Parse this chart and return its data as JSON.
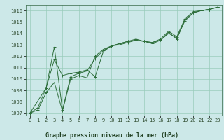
{
  "xlabel": "Graphe pression niveau de la mer (hPa)",
  "bg_color": "#cce8e8",
  "grid_color": "#99ccbb",
  "line_color": "#2d6e3a",
  "marker_color": "#2d6e3a",
  "ylim": [
    1006.8,
    1016.5
  ],
  "xlim": [
    -0.5,
    23.5
  ],
  "yticks": [
    1007,
    1008,
    1009,
    1010,
    1011,
    1012,
    1013,
    1014,
    1015,
    1016
  ],
  "xticks": [
    0,
    1,
    2,
    3,
    4,
    5,
    6,
    7,
    8,
    9,
    10,
    11,
    12,
    13,
    14,
    15,
    16,
    17,
    18,
    19,
    20,
    21,
    22,
    23
  ],
  "series1_x": [
    0,
    1,
    2,
    3,
    4,
    5,
    6,
    7,
    8,
    9,
    10,
    11,
    12,
    13,
    14,
    15,
    16,
    17,
    18,
    19,
    20,
    21,
    22,
    23
  ],
  "series1_y": [
    1007.0,
    1007.5,
    1009.2,
    1012.8,
    1007.3,
    1010.2,
    1010.5,
    1010.7,
    1011.8,
    1012.5,
    1012.9,
    1013.1,
    1013.3,
    1013.5,
    1013.3,
    1013.2,
    1013.5,
    1014.2,
    1013.7,
    1015.3,
    1015.9,
    1016.0,
    1016.1,
    1016.3
  ],
  "series2_x": [
    0,
    2,
    3,
    4,
    5,
    6,
    7,
    8,
    9,
    10,
    11,
    12,
    13,
    14,
    15,
    16,
    17,
    18,
    19,
    20,
    21,
    22,
    23
  ],
  "series2_y": [
    1007.0,
    1009.2,
    1011.7,
    1010.3,
    1010.5,
    1010.6,
    1010.8,
    1010.2,
    1012.4,
    1012.9,
    1013.0,
    1013.2,
    1013.4,
    1013.3,
    1013.2,
    1013.4,
    1014.0,
    1013.6,
    1015.1,
    1015.8,
    1016.0,
    1016.1,
    1016.3
  ],
  "series3_x": [
    0,
    1,
    2,
    3,
    4,
    5,
    6,
    7,
    8,
    9,
    10,
    11,
    12,
    13,
    14,
    15,
    16,
    17,
    18,
    19,
    20,
    21,
    22,
    23
  ],
  "series3_y": [
    1007.0,
    1007.3,
    1008.8,
    1009.7,
    1007.2,
    1010.0,
    1010.3,
    1010.1,
    1012.0,
    1012.6,
    1012.9,
    1013.1,
    1013.3,
    1013.4,
    1013.3,
    1013.1,
    1013.4,
    1014.1,
    1013.5,
    1015.2,
    1015.8,
    1016.0,
    1016.1,
    1016.3
  ],
  "tick_fontsize": 5,
  "xlabel_fontsize": 6,
  "tick_color": "#2d4a2d",
  "xlabel_color": "#1a3a1a"
}
